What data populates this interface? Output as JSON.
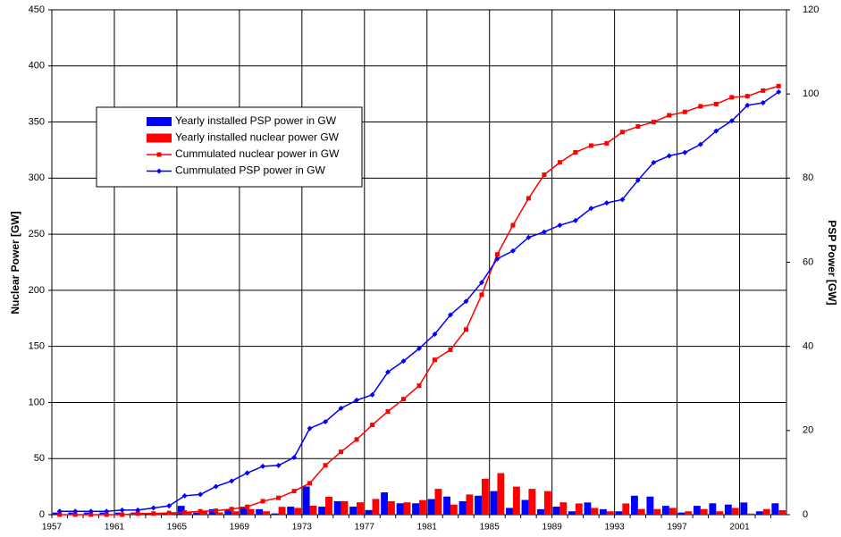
{
  "chart_data": {
    "type": "combo",
    "y_label": "Nuclear Power [GW]",
    "y2_label": "PSP Power [GW]",
    "categories": [
      "1957",
      null,
      null,
      null,
      "1961",
      null,
      null,
      null,
      "1965",
      null,
      null,
      null,
      "1969",
      null,
      null,
      null,
      "1973",
      null,
      null,
      null,
      "1977",
      null,
      null,
      null,
      "1981",
      null,
      null,
      null,
      "1985",
      null,
      null,
      null,
      "1989",
      null,
      null,
      null,
      "1993",
      null,
      null,
      null,
      "1997",
      null,
      null,
      null,
      "2001",
      null,
      null
    ],
    "ylim": [
      0,
      450
    ],
    "yticks": [
      0,
      50,
      100,
      150,
      200,
      250,
      300,
      350,
      400,
      450
    ],
    "y2lim": [
      0,
      120
    ],
    "y2ticks": [
      0,
      20,
      40,
      60,
      80,
      100,
      120
    ],
    "grid": true,
    "legend": "upper left",
    "series": [
      {
        "name": "Yearly installed PSP power in GW",
        "type": "bar",
        "axis": "y2",
        "color": "#0000ff",
        "values": [
          0.5,
          0.5,
          0.5,
          0.5,
          0.5,
          0.5,
          0.3,
          0.5,
          2.1,
          0.5,
          1.3,
          1.3,
          1.9,
          1.3,
          0.3,
          1.9,
          6.7,
          1.9,
          3.2,
          1.9,
          1.1,
          5.3,
          2.7,
          2.7,
          3.7,
          4.3,
          3.2,
          4.5,
          5.6,
          1.6,
          3.5,
          1.3,
          1.9,
          0.8,
          2.9,
          1.3,
          0.8,
          4.5,
          4.3,
          2.1,
          0.5,
          2.1,
          2.7,
          2.4,
          2.9,
          0.8,
          2.7
        ]
      },
      {
        "name": "Yearly installed nuclear power GW",
        "type": "bar",
        "axis": "y",
        "color": "#ff0000",
        "values": [
          0,
          0,
          0,
          0,
          0,
          1,
          1,
          2,
          2,
          3,
          2,
          3,
          5,
          3,
          7,
          6,
          8,
          16,
          12,
          11,
          14,
          12,
          11,
          13,
          23,
          9,
          18,
          32,
          37,
          25,
          23,
          21,
          11,
          10,
          6,
          3,
          10,
          5,
          5,
          6,
          3,
          5,
          3,
          6,
          1,
          5,
          4
        ]
      },
      {
        "name": "Cummulated nuclear power in GW",
        "type": "line",
        "axis": "y",
        "color": "#ff0000",
        "marker": "square",
        "values": [
          0,
          0,
          0,
          0,
          0,
          1,
          1,
          1.5,
          2,
          3,
          3.5,
          5,
          7,
          12,
          15,
          21,
          28,
          44,
          56,
          67,
          80,
          92,
          103,
          115,
          138,
          147,
          165,
          196,
          232,
          258,
          282,
          303,
          314,
          323,
          329,
          331,
          341,
          346,
          350,
          356,
          359,
          364,
          366,
          372,
          373,
          378,
          382
        ]
      },
      {
        "name": "Cummulated PSP power in GW",
        "type": "line",
        "axis": "y2",
        "color": "#0000ff",
        "marker": "diamond",
        "values": [
          0.8,
          0.8,
          0.8,
          0.8,
          1.1,
          1.1,
          1.6,
          2.1,
          4.5,
          4.8,
          6.7,
          8,
          9.9,
          11.5,
          11.7,
          13.6,
          20.5,
          22.1,
          25.3,
          27.2,
          28.5,
          33.9,
          36.5,
          39.5,
          42.9,
          47.5,
          50.7,
          55.2,
          60.8,
          62.7,
          65.9,
          67.2,
          68.8,
          69.9,
          72.8,
          74.1,
          74.9,
          79.5,
          83.7,
          85.3,
          86.1,
          88,
          91.2,
          93.6,
          97.3,
          97.9,
          100.5
        ]
      }
    ]
  }
}
